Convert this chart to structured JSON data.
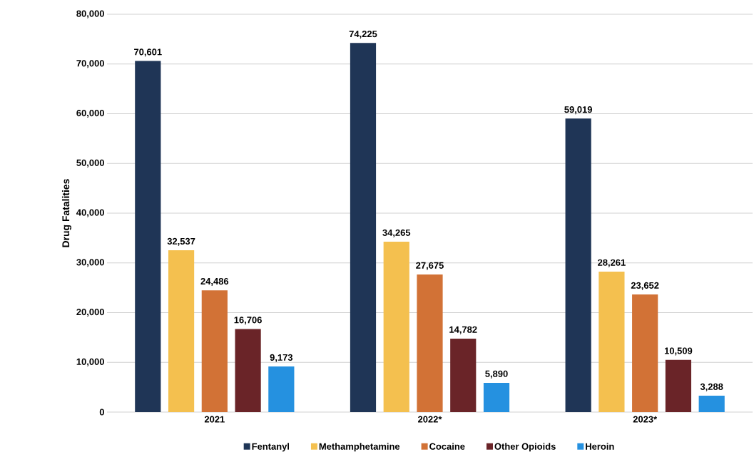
{
  "chart_data": {
    "type": "bar",
    "ylabel": "Drug Fatalities",
    "categories": [
      "2021",
      "2022*",
      "2023*"
    ],
    "series": [
      {
        "name": "Fentanyl",
        "color": "#1f3556",
        "values": [
          70601,
          74225,
          59019
        ],
        "value_labels": [
          "70,601",
          "74,225",
          "59,019"
        ]
      },
      {
        "name": "Methamphetamine",
        "color": "#f4c04f",
        "values": [
          32537,
          34265,
          28261
        ],
        "value_labels": [
          "32,537",
          "34,265",
          "28,261"
        ]
      },
      {
        "name": "Cocaine",
        "color": "#d27236",
        "values": [
          24486,
          27675,
          23652
        ],
        "value_labels": [
          "24,486",
          "27,675",
          "23,652"
        ]
      },
      {
        "name": "Other Opioids",
        "color": "#6a2428",
        "values": [
          16706,
          14782,
          10509
        ],
        "value_labels": [
          "16,706",
          "14,782",
          "10,509"
        ]
      },
      {
        "name": "Heroin",
        "color": "#2591e0",
        "values": [
          9173,
          5890,
          3288
        ],
        "value_labels": [
          "9,173",
          "5,890",
          "3,288"
        ]
      }
    ],
    "ylim": [
      0,
      80000
    ],
    "yticks": [
      {
        "value": 0,
        "label": "0"
      },
      {
        "value": 10000,
        "label": "10,000"
      },
      {
        "value": 20000,
        "label": "20,000"
      },
      {
        "value": 30000,
        "label": "30,000"
      },
      {
        "value": 40000,
        "label": "40,000"
      },
      {
        "value": 50000,
        "label": "50,000"
      },
      {
        "value": 60000,
        "label": "60,000"
      },
      {
        "value": 70000,
        "label": "70,000"
      },
      {
        "value": 80000,
        "label": "80,000"
      }
    ],
    "grid": "y",
    "legend": "bottom"
  }
}
